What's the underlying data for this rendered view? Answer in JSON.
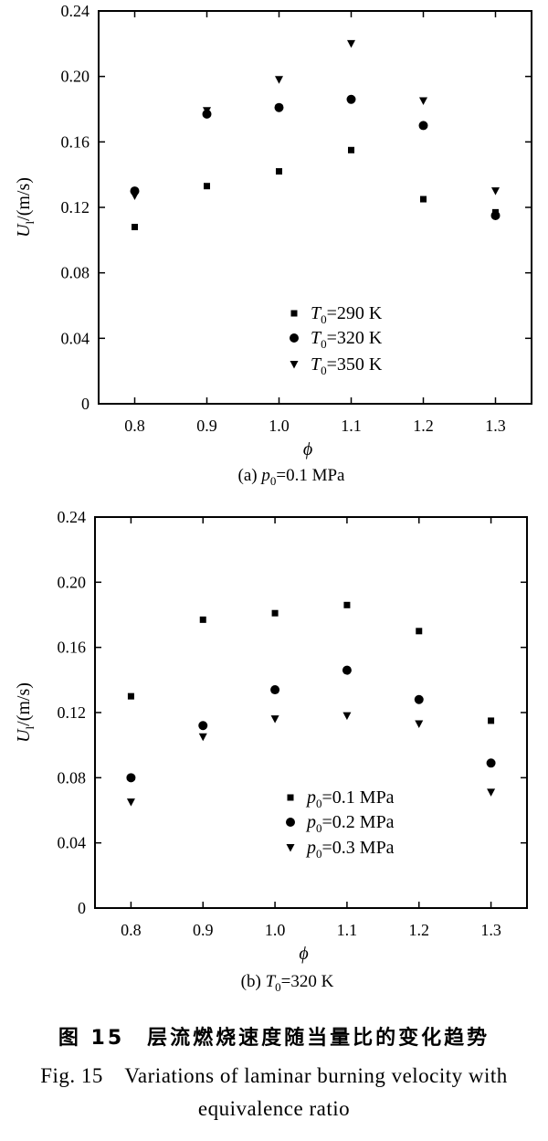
{
  "chart_data": [
    {
      "type": "scatter",
      "caption": "(a) p0=0.1 MPa",
      "caption_parts": {
        "prefix": "(a)",
        "var": "p",
        "sub": "0",
        "suffix": "=0.1 MPa"
      },
      "xlabel": "ϕ",
      "ylabel": {
        "main": "U",
        "sub": "l",
        "unit": "/(m/s)"
      },
      "xlim": [
        0.75,
        1.35
      ],
      "ylim": [
        0,
        0.24
      ],
      "xticks": [
        "0.8",
        "0.9",
        "1.0",
        "1.1",
        "1.2",
        "1.3"
      ],
      "xtick_values": [
        0.8,
        0.9,
        1.0,
        1.1,
        1.2,
        1.3
      ],
      "yticks": [
        "0",
        "0.04",
        "0.08",
        "0.12",
        "0.16",
        "0.20",
        "0.24"
      ],
      "ytick_values": [
        0,
        0.04,
        0.08,
        0.12,
        0.16,
        0.2,
        0.24
      ],
      "legend_position": "bottom-right",
      "x": [
        0.8,
        0.9,
        1.0,
        1.1,
        1.2,
        1.3
      ],
      "series": [
        {
          "name": "T0=290 K",
          "legend": {
            "var": "T",
            "sub": "0",
            "rest": "=290 K"
          },
          "marker": "square",
          "values": [
            0.108,
            0.133,
            0.142,
            0.155,
            0.125,
            0.117
          ]
        },
        {
          "name": "T0=320 K",
          "legend": {
            "var": "T",
            "sub": "0",
            "rest": "=320 K"
          },
          "marker": "circle",
          "values": [
            0.13,
            0.177,
            0.181,
            0.186,
            0.17,
            0.115
          ]
        },
        {
          "name": "T0=350 K",
          "legend": {
            "var": "T",
            "sub": "0",
            "rest": "=350 K"
          },
          "marker": "triangle-down",
          "values": [
            0.127,
            0.179,
            0.198,
            0.22,
            0.185,
            0.13
          ]
        }
      ]
    },
    {
      "type": "scatter",
      "caption": "(b) T0=320 K",
      "caption_parts": {
        "prefix": "(b)",
        "var": "T",
        "sub": "0",
        "suffix": "=320 K"
      },
      "xlabel": "ϕ",
      "ylabel": {
        "main": "U",
        "sub": "l",
        "unit": "/(m/s)"
      },
      "xlim": [
        0.75,
        1.35
      ],
      "ylim": [
        0,
        0.24
      ],
      "xticks": [
        "0.8",
        "0.9",
        "1.0",
        "1.1",
        "1.2",
        "1.3"
      ],
      "xtick_values": [
        0.8,
        0.9,
        1.0,
        1.1,
        1.2,
        1.3
      ],
      "yticks": [
        "0",
        "0.04",
        "0.08",
        "0.12",
        "0.16",
        "0.20",
        "0.24"
      ],
      "ytick_values": [
        0,
        0.04,
        0.08,
        0.12,
        0.16,
        0.2,
        0.24
      ],
      "legend_position": "bottom-right",
      "x": [
        0.8,
        0.9,
        1.0,
        1.1,
        1.2,
        1.3
      ],
      "series": [
        {
          "name": "p0=0.1 MPa",
          "legend": {
            "var": "p",
            "sub": "0",
            "rest": "=0.1 MPa"
          },
          "marker": "square",
          "values": [
            0.13,
            0.177,
            0.181,
            0.186,
            0.17,
            0.115
          ]
        },
        {
          "name": "p0=0.2 MPa",
          "legend": {
            "var": "p",
            "sub": "0",
            "rest": "=0.2 MPa"
          },
          "marker": "circle",
          "values": [
            0.08,
            0.112,
            0.134,
            0.146,
            0.128,
            0.089
          ]
        },
        {
          "name": "p0=0.3 MPa",
          "legend": {
            "var": "p",
            "sub": "0",
            "rest": "=0.3 MPa"
          },
          "marker": "triangle-down",
          "values": [
            0.065,
            0.105,
            0.116,
            0.118,
            0.113,
            0.071
          ]
        }
      ]
    }
  ],
  "caption": {
    "zh": "图 15　层流燃烧速度随当量比的变化趋势",
    "en_line1": "Fig. 15　Variations of laminar burning velocity with",
    "en_line2": "equivalence ratio"
  }
}
